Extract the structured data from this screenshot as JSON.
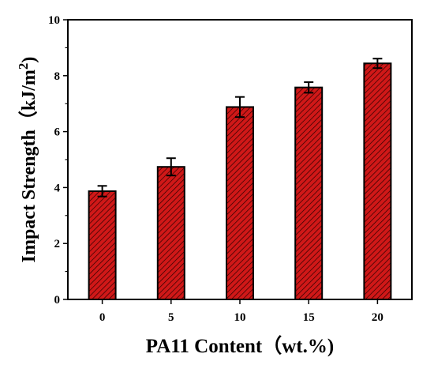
{
  "chart_data": {
    "type": "bar",
    "xlabel": "PA11 Content（wt.%)",
    "ylabel_main": "Impact Strength（kJ/m",
    "ylabel_sup": "2",
    "ylabel_end": ")",
    "categories": [
      "0",
      "5",
      "10",
      "15",
      "20"
    ],
    "values": [
      3.87,
      4.74,
      6.88,
      7.58,
      8.44
    ],
    "errors": [
      0.19,
      0.31,
      0.36,
      0.19,
      0.17
    ],
    "ylim": [
      0,
      10
    ],
    "yticks": [
      "0",
      "2",
      "4",
      "6",
      "8",
      "10"
    ],
    "bar_color": "#d01818",
    "hatch_color": "#2a0000",
    "grid": false,
    "legend": "none"
  }
}
